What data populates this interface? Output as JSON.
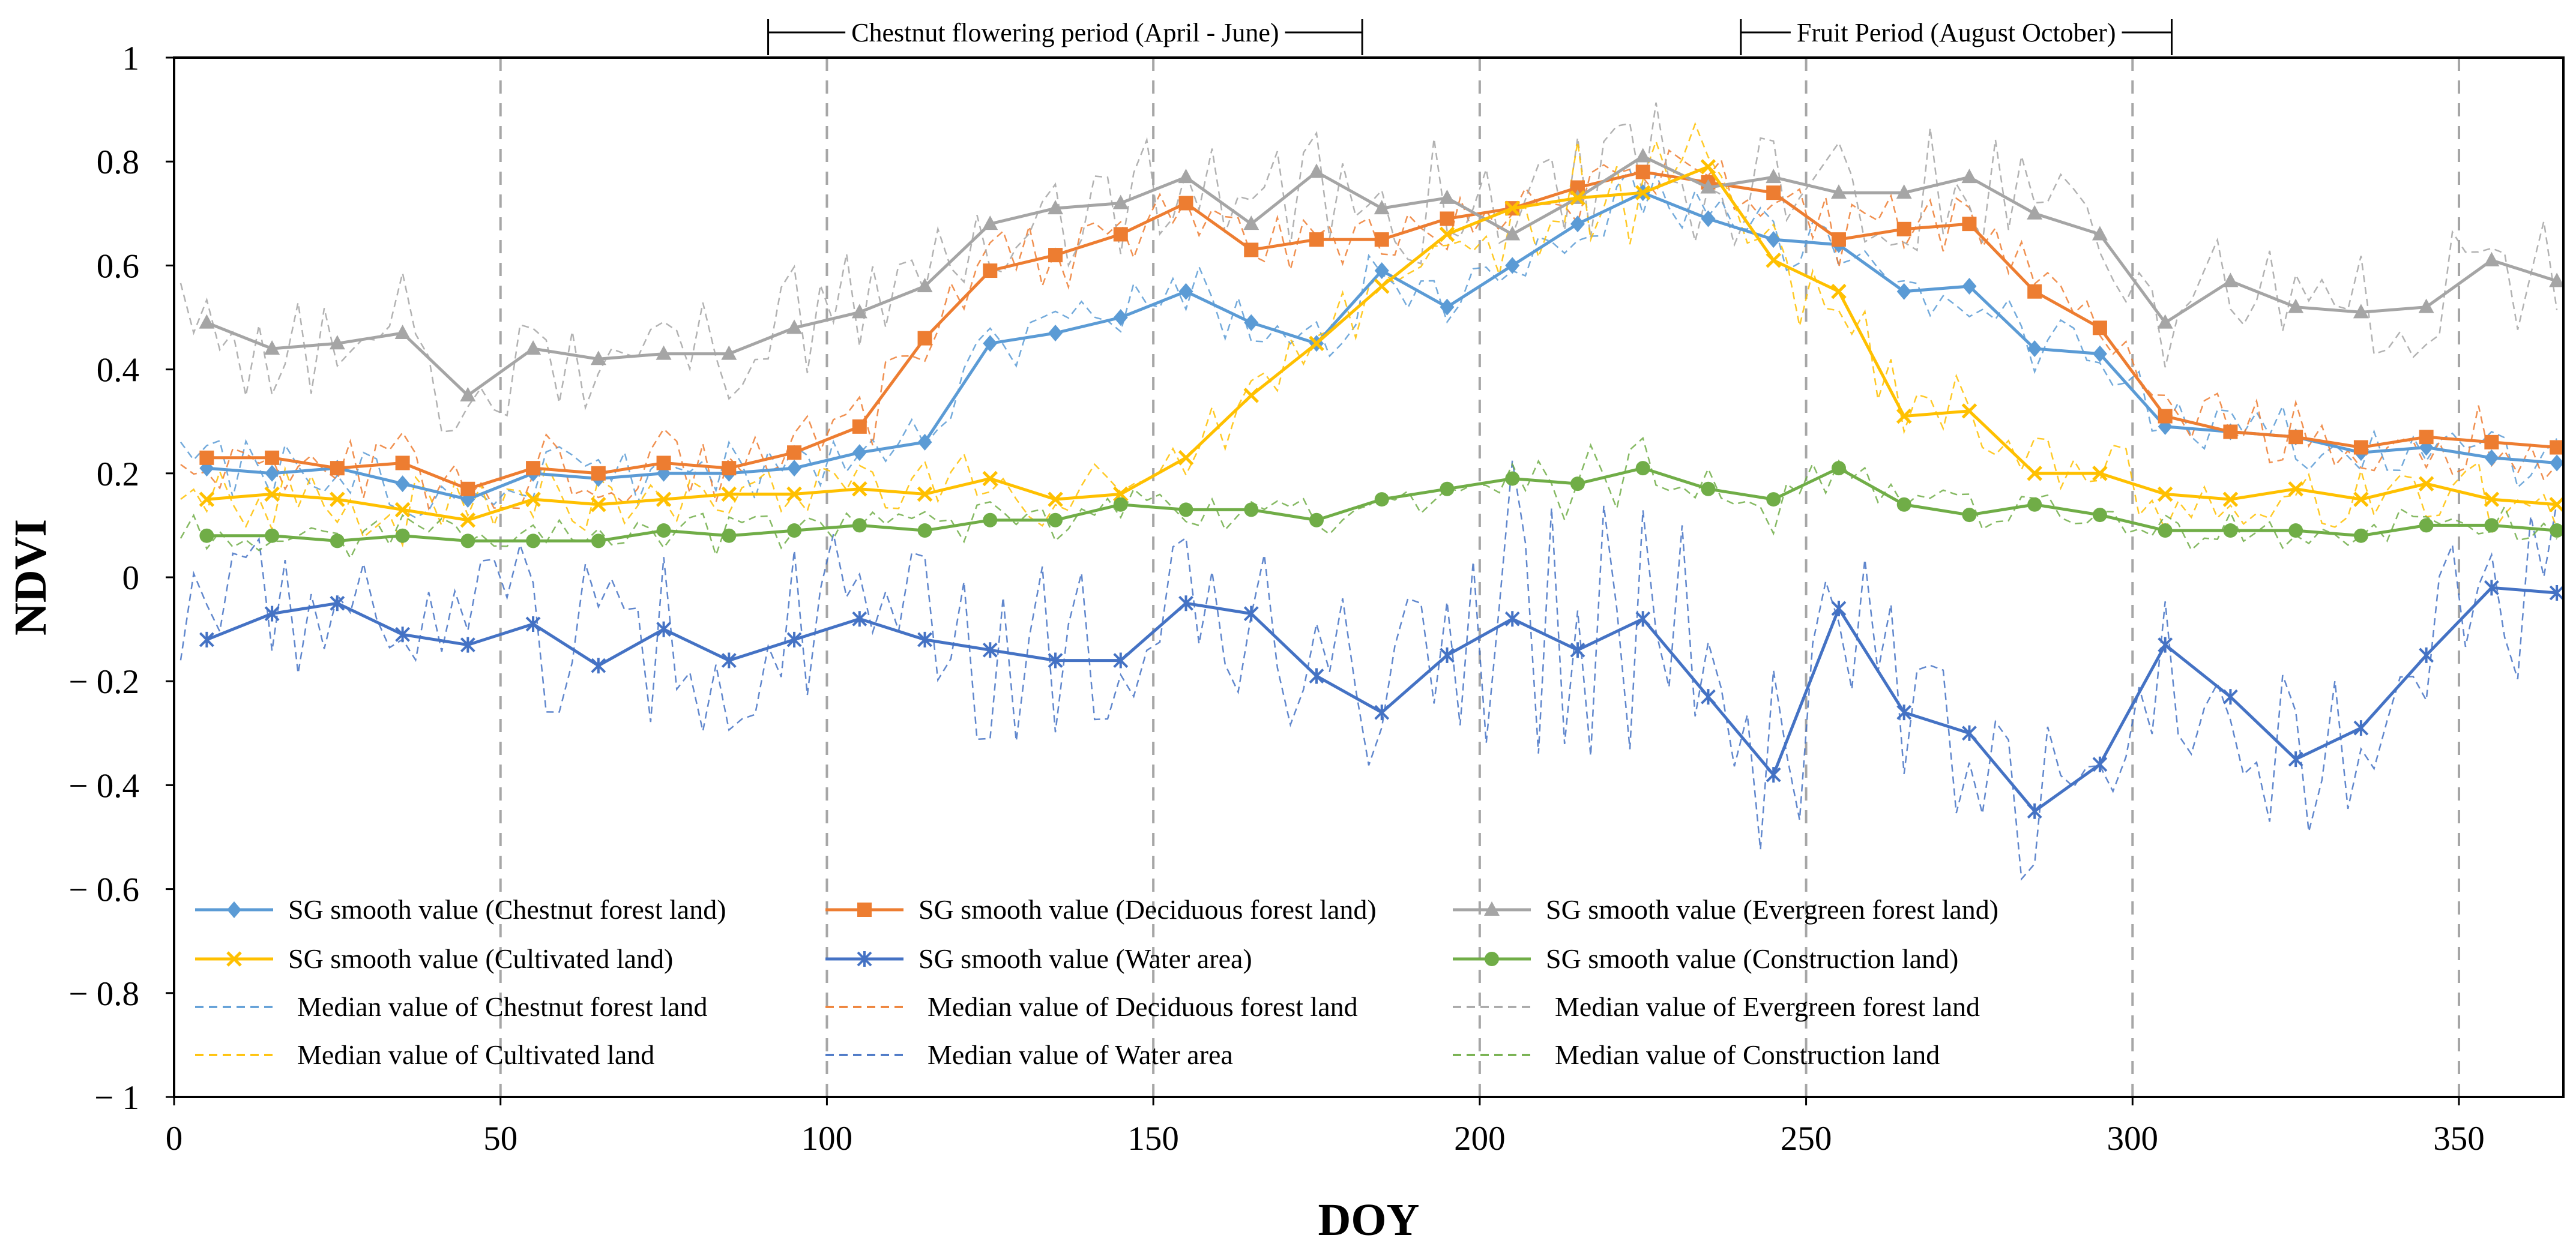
{
  "chart_data": {
    "type": "line",
    "xlabel": "DOY",
    "ylabel": "NDVI",
    "xlim": [
      0,
      366
    ],
    "ylim": [
      -1,
      1
    ],
    "x_ticks": [
      0,
      50,
      100,
      150,
      200,
      250,
      300,
      350
    ],
    "y_ticks": [
      1,
      0.8,
      0.6,
      0.4,
      0.2,
      0,
      -0.2,
      -0.4,
      -0.6,
      -0.8,
      -1
    ],
    "y_tick_labels": [
      "1",
      "0.8",
      "0.6",
      "0.4",
      "0.2",
      "0",
      "− 0.2",
      "− 0.4",
      "− 0.6",
      "− 0.8",
      "− 1"
    ],
    "vertical_lines_at": [
      50,
      100,
      150,
      200,
      250,
      300,
      350
    ],
    "periods": [
      {
        "label": "Chestnut flowering period (April - June)",
        "start": 91,
        "end": 182
      },
      {
        "label": "Fruit Period (August October)",
        "start": 240,
        "end": 306
      }
    ],
    "x": [
      5,
      15,
      25,
      35,
      45,
      55,
      65,
      75,
      85,
      95,
      105,
      115,
      125,
      135,
      145,
      155,
      165,
      175,
      185,
      195,
      205,
      215,
      225,
      235,
      245,
      255,
      265,
      275,
      285,
      295,
      305,
      315,
      325,
      335,
      345,
      355,
      365
    ],
    "series": [
      {
        "name": "SG smooth value (Chestnut forest land)",
        "color": "#5B9BD5",
        "marker": "diamond",
        "values": [
          0.21,
          0.2,
          0.21,
          0.18,
          0.15,
          0.2,
          0.19,
          0.2,
          0.2,
          0.21,
          0.24,
          0.26,
          0.45,
          0.47,
          0.5,
          0.55,
          0.49,
          0.45,
          0.59,
          0.52,
          0.6,
          0.68,
          0.74,
          0.69,
          0.65,
          0.64,
          0.55,
          0.56,
          0.44,
          0.43,
          0.29,
          0.28,
          0.27,
          0.24,
          0.25,
          0.23,
          0.22
        ]
      },
      {
        "name": "SG smooth value (Deciduous forest land)",
        "color": "#ED7D31",
        "marker": "square",
        "values": [
          0.23,
          0.23,
          0.21,
          0.22,
          0.17,
          0.21,
          0.2,
          0.22,
          0.21,
          0.24,
          0.29,
          0.46,
          0.59,
          0.62,
          0.66,
          0.72,
          0.63,
          0.65,
          0.65,
          0.69,
          0.71,
          0.75,
          0.78,
          0.76,
          0.74,
          0.65,
          0.67,
          0.68,
          0.55,
          0.48,
          0.31,
          0.28,
          0.27,
          0.25,
          0.27,
          0.26,
          0.25
        ]
      },
      {
        "name": "SG smooth value (Evergreen forest land)",
        "color": "#A5A5A5",
        "marker": "triangle",
        "values": [
          0.49,
          0.44,
          0.45,
          0.47,
          0.35,
          0.44,
          0.42,
          0.43,
          0.43,
          0.48,
          0.51,
          0.56,
          0.68,
          0.71,
          0.72,
          0.77,
          0.68,
          0.78,
          0.71,
          0.73,
          0.66,
          0.73,
          0.81,
          0.75,
          0.77,
          0.74,
          0.74,
          0.77,
          0.7,
          0.66,
          0.49,
          0.57,
          0.52,
          0.51,
          0.52,
          0.61,
          0.57
        ]
      },
      {
        "name": "SG smooth value (Cultivated land)",
        "color": "#FFC000",
        "marker": "x",
        "values": [
          0.15,
          0.16,
          0.15,
          0.13,
          0.11,
          0.15,
          0.14,
          0.15,
          0.16,
          0.16,
          0.17,
          0.16,
          0.19,
          0.15,
          0.16,
          0.23,
          0.35,
          0.45,
          0.56,
          0.66,
          0.71,
          0.73,
          0.74,
          0.79,
          0.61,
          0.55,
          0.31,
          0.32,
          0.2,
          0.2,
          0.16,
          0.15,
          0.17,
          0.15,
          0.18,
          0.15,
          0.14
        ]
      },
      {
        "name": "SG smooth value (Water area)",
        "color": "#4472C4",
        "marker": "star",
        "values": [
          -0.12,
          -0.07,
          -0.05,
          -0.11,
          -0.13,
          -0.09,
          -0.17,
          -0.1,
          -0.16,
          -0.12,
          -0.08,
          -0.12,
          -0.14,
          -0.16,
          -0.16,
          -0.05,
          -0.07,
          -0.19,
          -0.26,
          -0.15,
          -0.08,
          -0.14,
          -0.08,
          -0.23,
          -0.38,
          -0.06,
          -0.26,
          -0.3,
          -0.45,
          -0.36,
          -0.13,
          -0.23,
          -0.35,
          -0.29,
          -0.15,
          -0.02,
          -0.03
        ]
      },
      {
        "name": "SG smooth value (Construction land)",
        "color": "#70AD47",
        "marker": "circle",
        "values": [
          0.08,
          0.08,
          0.07,
          0.08,
          0.07,
          0.07,
          0.07,
          0.09,
          0.08,
          0.09,
          0.1,
          0.09,
          0.11,
          0.11,
          0.14,
          0.13,
          0.13,
          0.11,
          0.15,
          0.17,
          0.19,
          0.18,
          0.21,
          0.17,
          0.15,
          0.21,
          0.14,
          0.12,
          0.14,
          0.12,
          0.09,
          0.09,
          0.09,
          0.08,
          0.1,
          0.1,
          0.09
        ]
      }
    ],
    "median_series": [
      {
        "name": "Median value of Chestnut forest land",
        "color": "#5B9BD5"
      },
      {
        "name": "Median value of Deciduous forest land",
        "color": "#ED7D31"
      },
      {
        "name": "Median value of Evergreen forest land",
        "color": "#A5A5A5"
      },
      {
        "name": "Median value of Cultivated land",
        "color": "#FFC000"
      },
      {
        "name": "Median value of Water area",
        "color": "#4472C4"
      },
      {
        "name": "Median value of Construction land",
        "color": "#70AD47"
      }
    ]
  }
}
